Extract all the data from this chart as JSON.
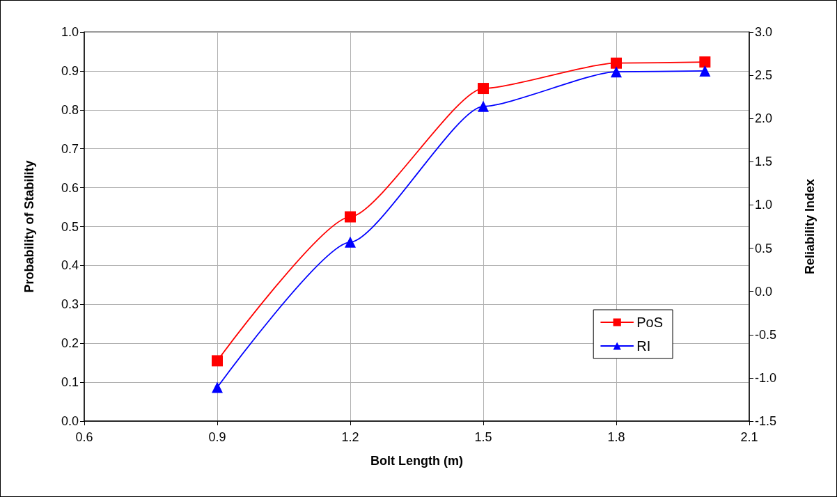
{
  "chart_data": {
    "type": "line",
    "xlabel": "Bolt Length (m)",
    "ylabel": "Probability of Stability",
    "y2label": "Reliability Index",
    "x": [
      0.9,
      1.2,
      1.5,
      1.8,
      2.0
    ],
    "series": [
      {
        "name": "PoS",
        "color": "#ff0000",
        "marker": "square",
        "values": [
          0.155,
          0.525,
          0.855,
          0.92,
          0.923
        ]
      },
      {
        "name": "RI",
        "color": "#0000ff",
        "marker": "triangle",
        "axis": "y2",
        "values": [
          -1.11,
          0.57,
          2.14,
          2.54,
          2.55
        ]
      }
    ],
    "xlim": [
      0.6,
      2.1
    ],
    "xticks": [
      0.6,
      0.9,
      1.2,
      1.5,
      1.8,
      2.1
    ],
    "ylim": [
      0,
      1
    ],
    "yticks": [
      {
        "value": 0,
        "label": "0.0"
      },
      0.1,
      0.2,
      0.3,
      0.4,
      0.5,
      0.6,
      0.7,
      0.8,
      0.9,
      {
        "value": 1,
        "label": "1.0"
      }
    ],
    "y2lim": [
      -1.5,
      3
    ],
    "y2ticks": [
      -1.5,
      {
        "value": -1,
        "label": "-1.0"
      },
      -0.5,
      {
        "value": 0,
        "label": "0.0"
      },
      0.5,
      {
        "value": 1,
        "label": "1.0"
      },
      1.5,
      {
        "value": 2,
        "label": "2.0"
      },
      2.5,
      {
        "value": 3,
        "label": "3.0"
      }
    ],
    "grid": true,
    "legend": "bottom right",
    "line_style": "solid"
  }
}
